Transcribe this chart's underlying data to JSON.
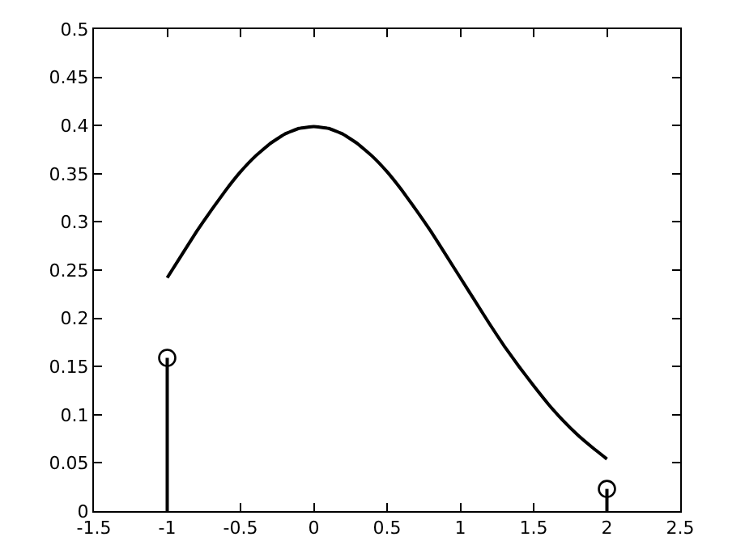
{
  "chart_data": {
    "type": "line",
    "xlim": [
      -1.5,
      2.5
    ],
    "ylim": [
      0,
      0.5
    ],
    "xticks": [
      -1.5,
      -1,
      -0.5,
      0,
      0.5,
      1,
      1.5,
      2,
      2.5
    ],
    "yticks": [
      0,
      0.05,
      0.1,
      0.15,
      0.2,
      0.25,
      0.3,
      0.35,
      0.4,
      0.45,
      0.5
    ],
    "grid": false,
    "series": [
      {
        "color": "#000000",
        "marker": "none",
        "line_style": "solid",
        "x": [
          -1,
          -0.9,
          -0.8,
          -0.7,
          -0.6,
          -0.5,
          -0.4,
          -0.3,
          -0.2,
          -0.1,
          0,
          0.1,
          0.2,
          0.3,
          0.4,
          0.5,
          0.6,
          0.7,
          0.8,
          0.9,
          1,
          1.1,
          1.2,
          1.3,
          1.4,
          1.5,
          1.6,
          1.7,
          1.8,
          1.9,
          2
        ],
        "values": [
          0.242,
          0.266,
          0.29,
          0.312,
          0.333,
          0.352,
          0.368,
          0.381,
          0.391,
          0.397,
          0.399,
          0.397,
          0.391,
          0.381,
          0.368,
          0.352,
          0.333,
          0.312,
          0.29,
          0.266,
          0.242,
          0.218,
          0.194,
          0.171,
          0.15,
          0.13,
          0.111,
          0.094,
          0.079,
          0.066,
          0.054
        ]
      },
      {
        "type": "lollipop",
        "color": "#000000",
        "marker": "circle",
        "x": [
          -1,
          2
        ],
        "values": [
          0.159,
          0.023
        ]
      }
    ]
  }
}
